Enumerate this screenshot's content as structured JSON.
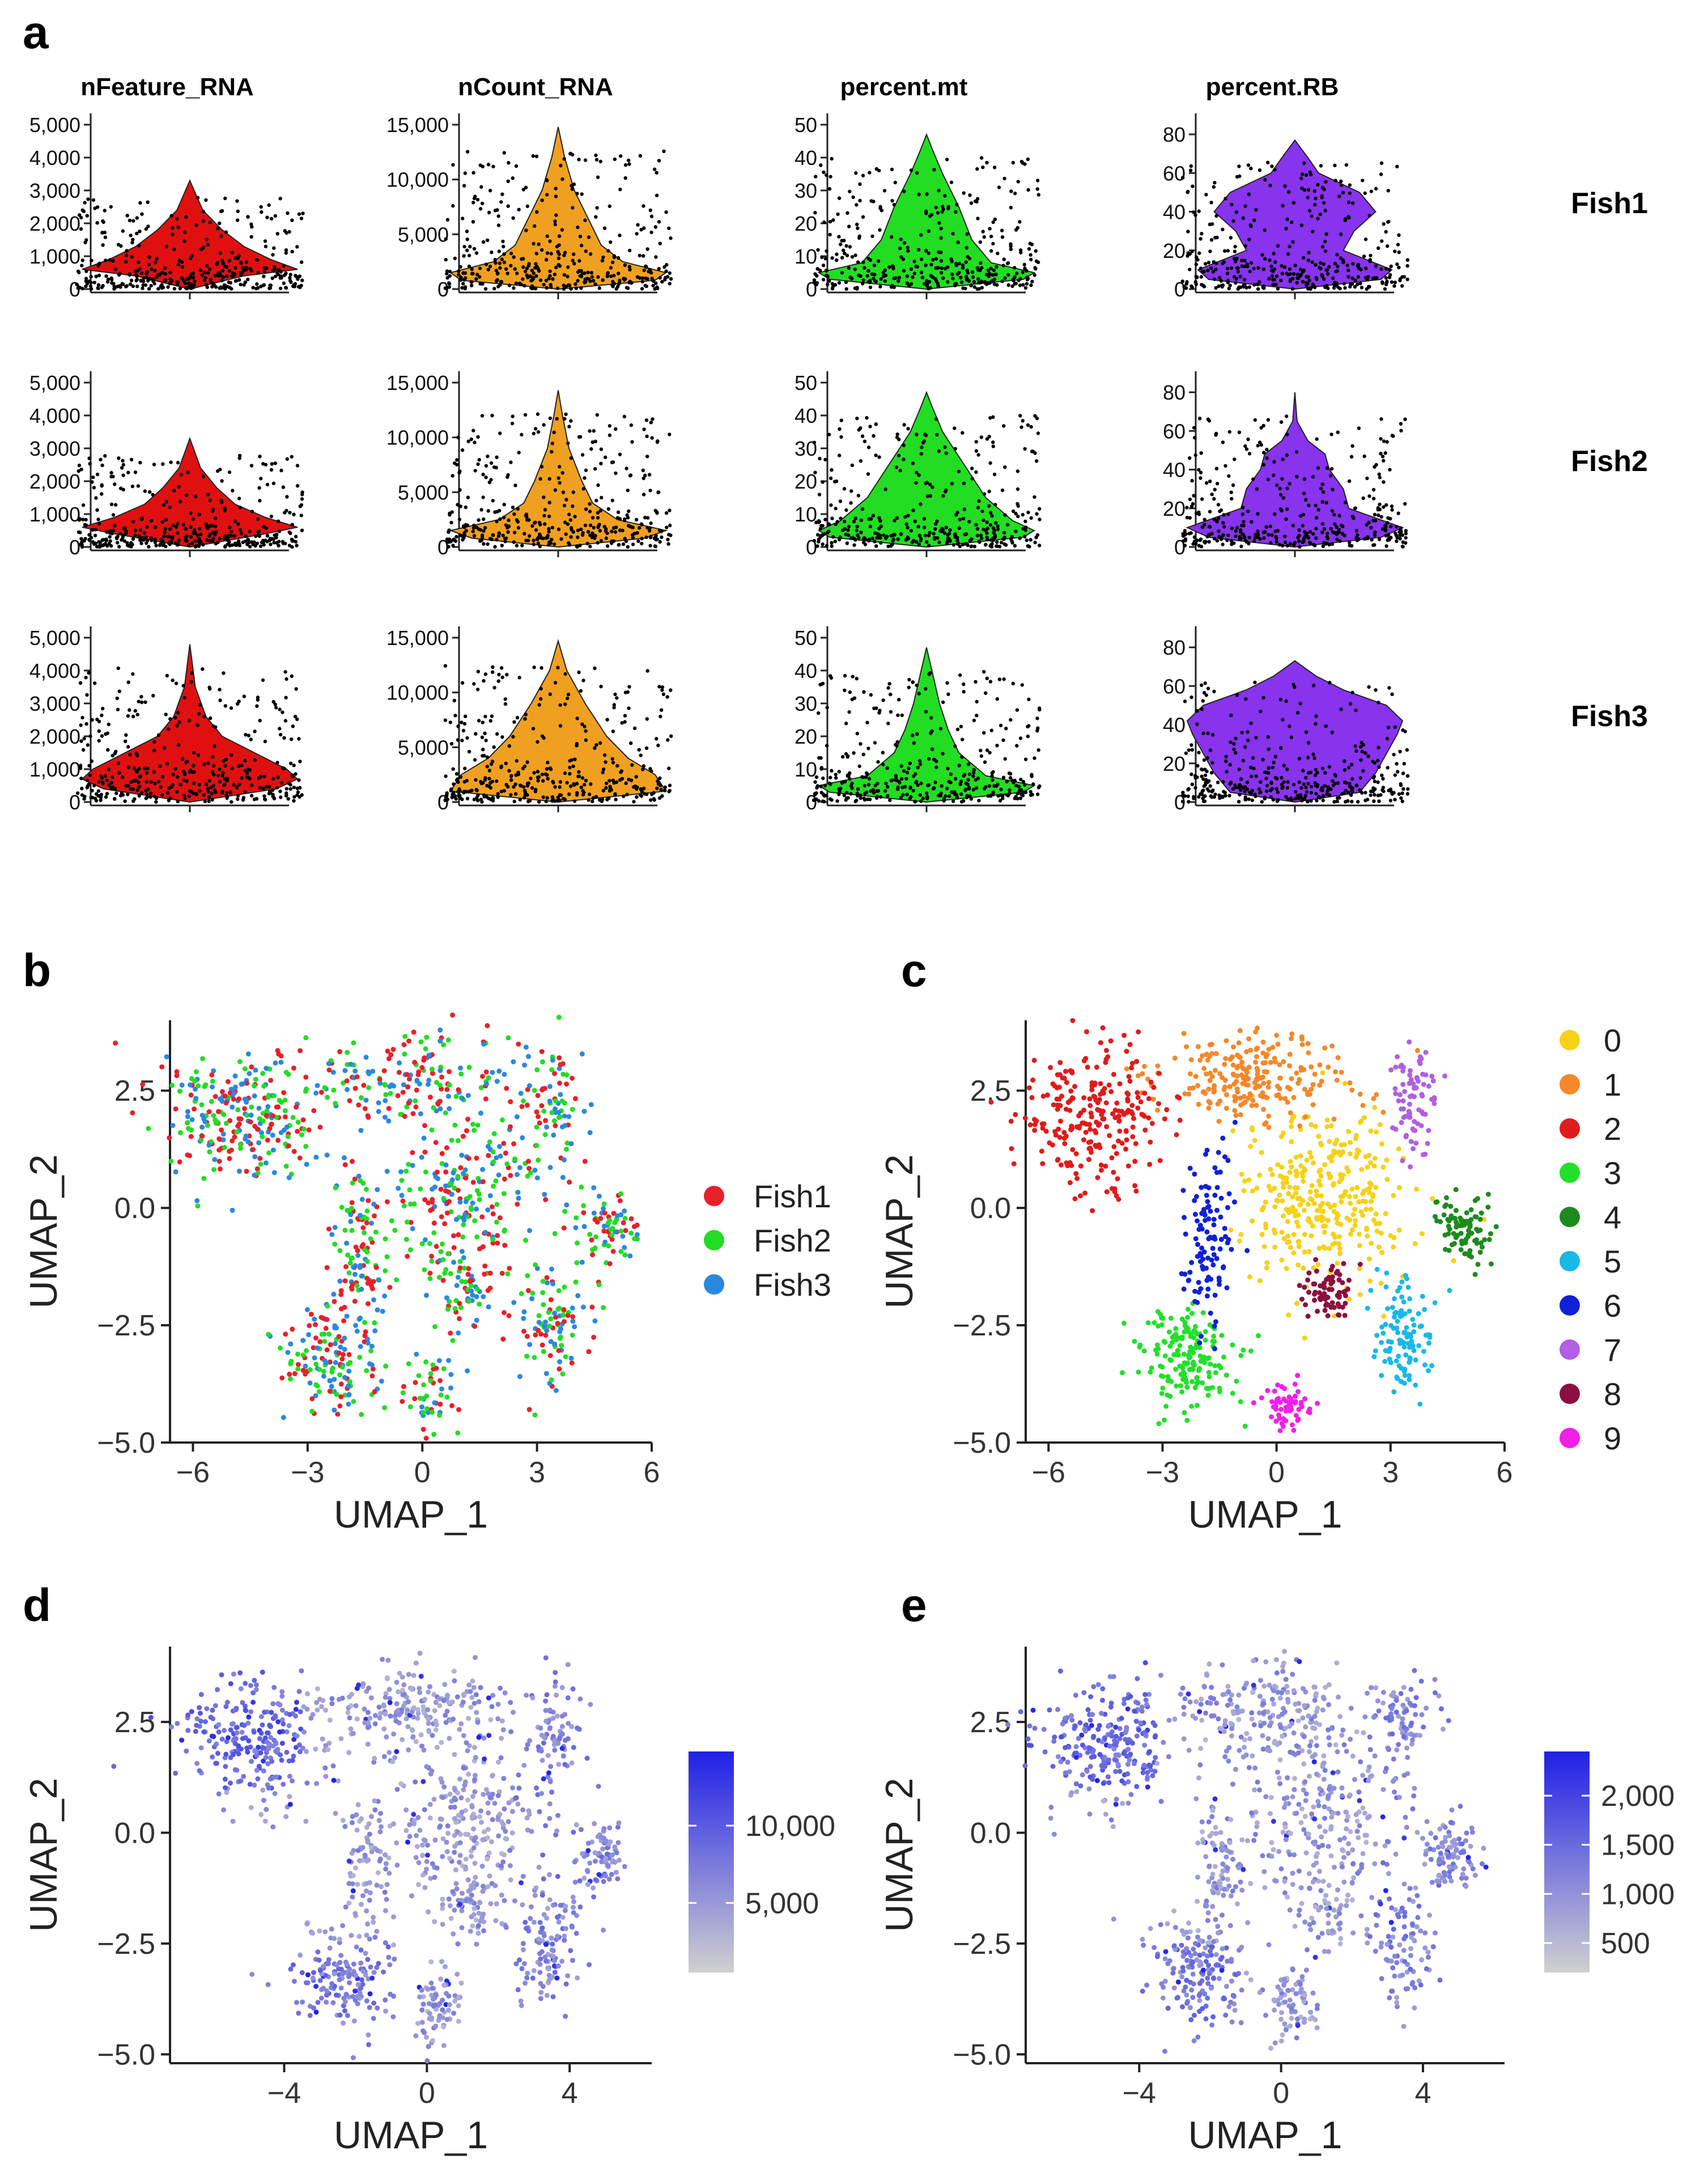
{
  "panel_letters": {
    "a": "a",
    "b": "b",
    "c": "c",
    "d": "d",
    "e": "e"
  },
  "colors": {
    "nFeature_RNA": "#e01010",
    "nCount_RNA": "#f0a020",
    "percent_mt": "#22dd22",
    "percent_RB": "#8833ee",
    "Fish1": "#e8202a",
    "Fish2": "#22dd22",
    "Fish3": "#2a88e0",
    "cluster_colors": [
      "#f7d117",
      "#f5882a",
      "#e01b1b",
      "#22e02a",
      "#1e8a1e",
      "#1ab8e8",
      "#1020d8",
      "#b060e0",
      "#8a1040",
      "#f020e8"
    ],
    "gradient_low": "#d0d0d0",
    "gradient_high": "#2020e8",
    "jitter": "#000000"
  },
  "chart_data": [
    {
      "id": "violin_grid",
      "type": "violin",
      "panel": "a",
      "columns": [
        {
          "key": "nFeature_RNA",
          "title": "nFeature_RNA",
          "ylim": [
            0,
            5000
          ],
          "ticks": [
            0,
            1000,
            2000,
            3000,
            4000,
            5000
          ],
          "tick_labels": [
            "0",
            "1,000",
            "2,000",
            "3,000",
            "4,000",
            "5,000"
          ]
        },
        {
          "key": "nCount_RNA",
          "title": "nCount_RNA",
          "ylim": [
            0,
            15000
          ],
          "ticks": [
            0,
            5000,
            10000,
            15000
          ],
          "tick_labels": [
            "0",
            "5,000",
            "10,000",
            "15,000"
          ]
        },
        {
          "key": "percent_mt",
          "title": "percent.mt",
          "ylim": [
            0,
            50
          ],
          "ticks": [
            0,
            10,
            20,
            30,
            40,
            50
          ],
          "tick_labels": [
            "0",
            "10",
            "20",
            "30",
            "40",
            "50"
          ]
        },
        {
          "key": "percent_RB",
          "title": "percent.RB",
          "ylim": [
            0,
            85
          ],
          "ticks": [
            0,
            20,
            40,
            60,
            80
          ],
          "tick_labels": [
            "0",
            "20",
            "40",
            "60",
            "80"
          ]
        }
      ],
      "rows": [
        {
          "label": "Fish1",
          "max": [
            3300,
            14800,
            47,
            77
          ],
          "density": [
            [
              [
                0,
                0
              ],
              [
                400,
                0.5
              ],
              [
                600,
                1
              ],
              [
                900,
                0.75
              ],
              [
                1300,
                0.5
              ],
              [
                1800,
                0.3
              ],
              [
                2400,
                0.12
              ],
              [
                3300,
                0
              ]
            ],
            [
              [
                0,
                0
              ],
              [
                800,
                0.9
              ],
              [
                1500,
                1
              ],
              [
                2500,
                0.6
              ],
              [
                4000,
                0.4
              ],
              [
                6000,
                0.3
              ],
              [
                9000,
                0.15
              ],
              [
                12000,
                0.06
              ],
              [
                14800,
                0
              ]
            ],
            [
              [
                0,
                0
              ],
              [
                3,
                0.9
              ],
              [
                5,
                1
              ],
              [
                8,
                0.6
              ],
              [
                15,
                0.42
              ],
              [
                25,
                0.3
              ],
              [
                35,
                0.15
              ],
              [
                42,
                0.06
              ],
              [
                47,
                0
              ]
            ],
            [
              [
                0,
                0
              ],
              [
                5,
                0.8
              ],
              [
                10,
                0.9
              ],
              [
                20,
                0.45
              ],
              [
                30,
                0.55
              ],
              [
                40,
                0.75
              ],
              [
                50,
                0.6
              ],
              [
                60,
                0.22
              ],
              [
                68,
                0.12
              ],
              [
                77,
                0
              ]
            ]
          ]
        },
        {
          "label": "Fish2",
          "max": [
            3300,
            14300,
            47,
            80
          ],
          "density": [
            [
              [
                0,
                0
              ],
              [
                400,
                0.7
              ],
              [
                600,
                1
              ],
              [
                900,
                0.7
              ],
              [
                1300,
                0.42
              ],
              [
                1800,
                0.25
              ],
              [
                2400,
                0.1
              ],
              [
                3300,
                0
              ]
            ],
            [
              [
                0,
                0
              ],
              [
                800,
                0.8
              ],
              [
                1500,
                1
              ],
              [
                2500,
                0.55
              ],
              [
                4000,
                0.32
              ],
              [
                6000,
                0.22
              ],
              [
                9000,
                0.1
              ],
              [
                12000,
                0.04
              ],
              [
                14300,
                0
              ]
            ],
            [
              [
                0,
                0
              ],
              [
                3,
                0.9
              ],
              [
                5,
                1
              ],
              [
                8,
                0.8
              ],
              [
                15,
                0.55
              ],
              [
                25,
                0.35
              ],
              [
                35,
                0.15
              ],
              [
                42,
                0.06
              ],
              [
                47,
                0
              ]
            ],
            [
              [
                0,
                0
              ],
              [
                5,
                0.8
              ],
              [
                10,
                1
              ],
              [
                20,
                0.5
              ],
              [
                30,
                0.45
              ],
              [
                40,
                0.32
              ],
              [
                48,
                0.28
              ],
              [
                55,
                0.12
              ],
              [
                65,
                0.02
              ],
              [
                80,
                0
              ]
            ]
          ]
        },
        {
          "label": "Fish3",
          "max": [
            4800,
            14700,
            47,
            73
          ],
          "density": [
            [
              [
                0,
                0
              ],
              [
                400,
                0.8
              ],
              [
                700,
                1
              ],
              [
                1000,
                0.9
              ],
              [
                1500,
                0.6
              ],
              [
                2000,
                0.3
              ],
              [
                2600,
                0.15
              ],
              [
                3500,
                0.05
              ],
              [
                4800,
                0
              ]
            ],
            [
              [
                0,
                0
              ],
              [
                1000,
                1
              ],
              [
                2500,
                0.9
              ],
              [
                4000,
                0.65
              ],
              [
                6000,
                0.45
              ],
              [
                9000,
                0.25
              ],
              [
                12000,
                0.08
              ],
              [
                14700,
                0
              ]
            ],
            [
              [
                0,
                0
              ],
              [
                3,
                0.9
              ],
              [
                5,
                1
              ],
              [
                8,
                0.55
              ],
              [
                15,
                0.3
              ],
              [
                22,
                0.2
              ],
              [
                30,
                0.12
              ],
              [
                40,
                0.05
              ],
              [
                47,
                0
              ]
            ],
            [
              [
                0,
                0
              ],
              [
                5,
                0.6
              ],
              [
                15,
                0.75
              ],
              [
                25,
                0.85
              ],
              [
                35,
                0.95
              ],
              [
                42,
                1
              ],
              [
                50,
                0.85
              ],
              [
                58,
                0.45
              ],
              [
                65,
                0.2
              ],
              [
                73,
                0
              ]
            ]
          ]
        }
      ]
    },
    {
      "id": "umap_sample",
      "type": "scatter",
      "panel": "b",
      "xlabel": "UMAP_1",
      "ylabel": "UMAP_2",
      "xlim": [
        -6.6,
        6.0
      ],
      "ylim": [
        -5.0,
        4.0
      ],
      "xticks": [
        -6,
        -3,
        0,
        3,
        6
      ],
      "xtick_labels": [
        "−6",
        "−3",
        "0",
        "3",
        "6"
      ],
      "yticks": [
        -5.0,
        -2.5,
        0.0,
        2.5
      ],
      "ytick_labels": [
        "−5.0",
        "−2.5",
        "0.0",
        "2.5"
      ],
      "legend": [
        {
          "label": "Fish1",
          "color": "#e8202a"
        },
        {
          "label": "Fish2",
          "color": "#22dd22"
        },
        {
          "label": "Fish3",
          "color": "#2a88e0"
        }
      ]
    },
    {
      "id": "umap_clusters",
      "type": "scatter",
      "panel": "c",
      "xlabel": "UMAP_1",
      "ylabel": "UMAP_2",
      "xlim": [
        -6.6,
        6.0
      ],
      "ylim": [
        -5.0,
        4.0
      ],
      "xticks": [
        -6,
        -3,
        0,
        3,
        6
      ],
      "xtick_labels": [
        "−6",
        "−3",
        "0",
        "3",
        "6"
      ],
      "yticks": [
        -5.0,
        -2.5,
        0.0,
        2.5
      ],
      "ytick_labels": [
        "−5.0",
        "−2.5",
        "0.0",
        "2.5"
      ],
      "legend": [
        {
          "label": "0"
        },
        {
          "label": "1"
        },
        {
          "label": "2"
        },
        {
          "label": "3"
        },
        {
          "label": "4"
        },
        {
          "label": "5"
        },
        {
          "label": "6"
        },
        {
          "label": "7"
        },
        {
          "label": "8"
        },
        {
          "label": "9"
        }
      ],
      "clusters": [
        {
          "id": 0,
          "cx": 1.3,
          "cy": 0.3,
          "sx": 1.1,
          "sy": 1.0,
          "n": 330
        },
        {
          "id": 1,
          "cx": -0.5,
          "cy": 2.8,
          "sx": 1.2,
          "sy": 0.45,
          "n": 230
        },
        {
          "id": 2,
          "cx": -4.8,
          "cy": 1.9,
          "sx": 0.9,
          "sy": 0.75,
          "n": 250
        },
        {
          "id": 3,
          "cx": -2.3,
          "cy": -3.2,
          "sx": 0.65,
          "sy": 0.55,
          "n": 180
        },
        {
          "id": 4,
          "cx": 4.9,
          "cy": -0.4,
          "sx": 0.35,
          "sy": 0.35,
          "n": 90
        },
        {
          "id": 5,
          "cx": 3.4,
          "cy": -2.7,
          "sx": 0.4,
          "sy": 0.6,
          "n": 110
        },
        {
          "id": 6,
          "cx": -1.8,
          "cy": -0.7,
          "sx": 0.3,
          "sy": 0.9,
          "n": 110
        },
        {
          "id": 7,
          "cx": 3.6,
          "cy": 2.4,
          "sx": 0.35,
          "sy": 0.6,
          "n": 80
        },
        {
          "id": 8,
          "cx": 1.3,
          "cy": -1.8,
          "sx": 0.35,
          "sy": 0.35,
          "n": 70
        },
        {
          "id": 9,
          "cx": 0.3,
          "cy": -4.2,
          "sx": 0.3,
          "sy": 0.25,
          "n": 60
        }
      ]
    },
    {
      "id": "umap_ncount",
      "type": "scatter",
      "panel": "d",
      "xlabel": "UMAP_1",
      "ylabel": "UMAP_2",
      "xlim": [
        -7.2,
        6.3
      ],
      "ylim": [
        -5.2,
        4.2
      ],
      "xticks": [
        -4,
        0,
        4
      ],
      "xtick_labels": [
        "−4",
        "0",
        "4"
      ],
      "yticks": [
        -5.0,
        -2.5,
        0.0,
        2.5
      ],
      "ytick_labels": [
        "−5.0",
        "−2.5",
        "0.0",
        "2.5"
      ],
      "colorbar": {
        "min": 500,
        "max": 14800,
        "ticks": [
          5000,
          10000
        ],
        "tick_labels": [
          "5,000",
          "10,000"
        ]
      }
    },
    {
      "id": "umap_nfeature",
      "type": "scatter",
      "panel": "e",
      "xlabel": "UMAP_1",
      "ylabel": "UMAP_2",
      "xlim": [
        -7.2,
        6.3
      ],
      "ylim": [
        -5.2,
        4.2
      ],
      "xticks": [
        -4,
        0,
        4
      ],
      "xtick_labels": [
        "−4",
        "0",
        "4"
      ],
      "yticks": [
        -5.0,
        -2.5,
        0.0,
        2.5
      ],
      "ytick_labels": [
        "−5.0",
        "−2.5",
        "0.0",
        "2.5"
      ],
      "colorbar": {
        "min": 200,
        "max": 2450,
        "ticks": [
          500,
          1000,
          1500,
          2000
        ],
        "tick_labels": [
          "500",
          "1,000",
          "1,500",
          "2,000"
        ]
      }
    }
  ]
}
